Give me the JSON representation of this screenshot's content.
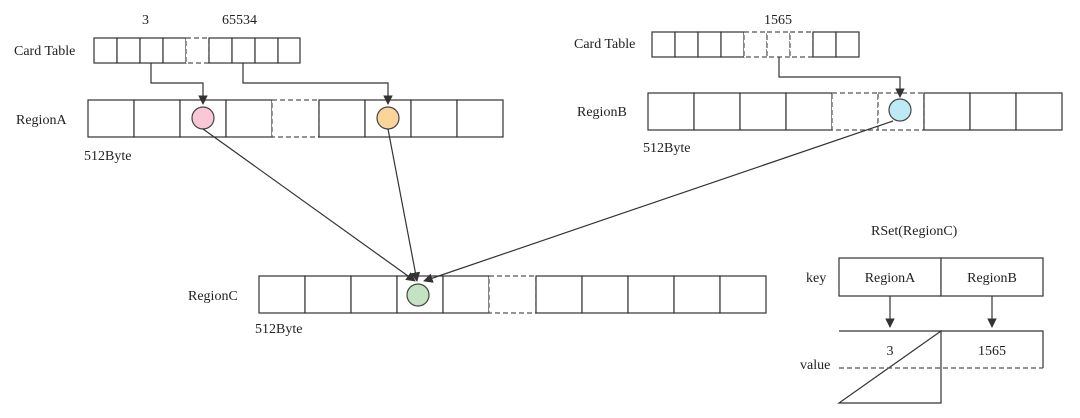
{
  "labels": {
    "card_table_a": "Card Table",
    "card_table_b": "Card Table",
    "index_3": "3",
    "index_65534": "65534",
    "index_1565": "1565",
    "region_a": "RegionA",
    "region_b": "RegionB",
    "region_c": "RegionC",
    "size_a": "512Byte",
    "size_b": "512Byte",
    "size_c": "512Byte",
    "rset_title": "RSet(RegionC)",
    "key": "key",
    "value": "value",
    "rset_key_a": "RegionA",
    "rset_key_b": "RegionB",
    "rset_val_a": "3",
    "rset_val_b": "1565"
  },
  "colors": {
    "pink": "#f9c8d6",
    "orange": "#fbd49a",
    "cyan": "#bdeaf4",
    "green": "#c3e3c3"
  }
}
